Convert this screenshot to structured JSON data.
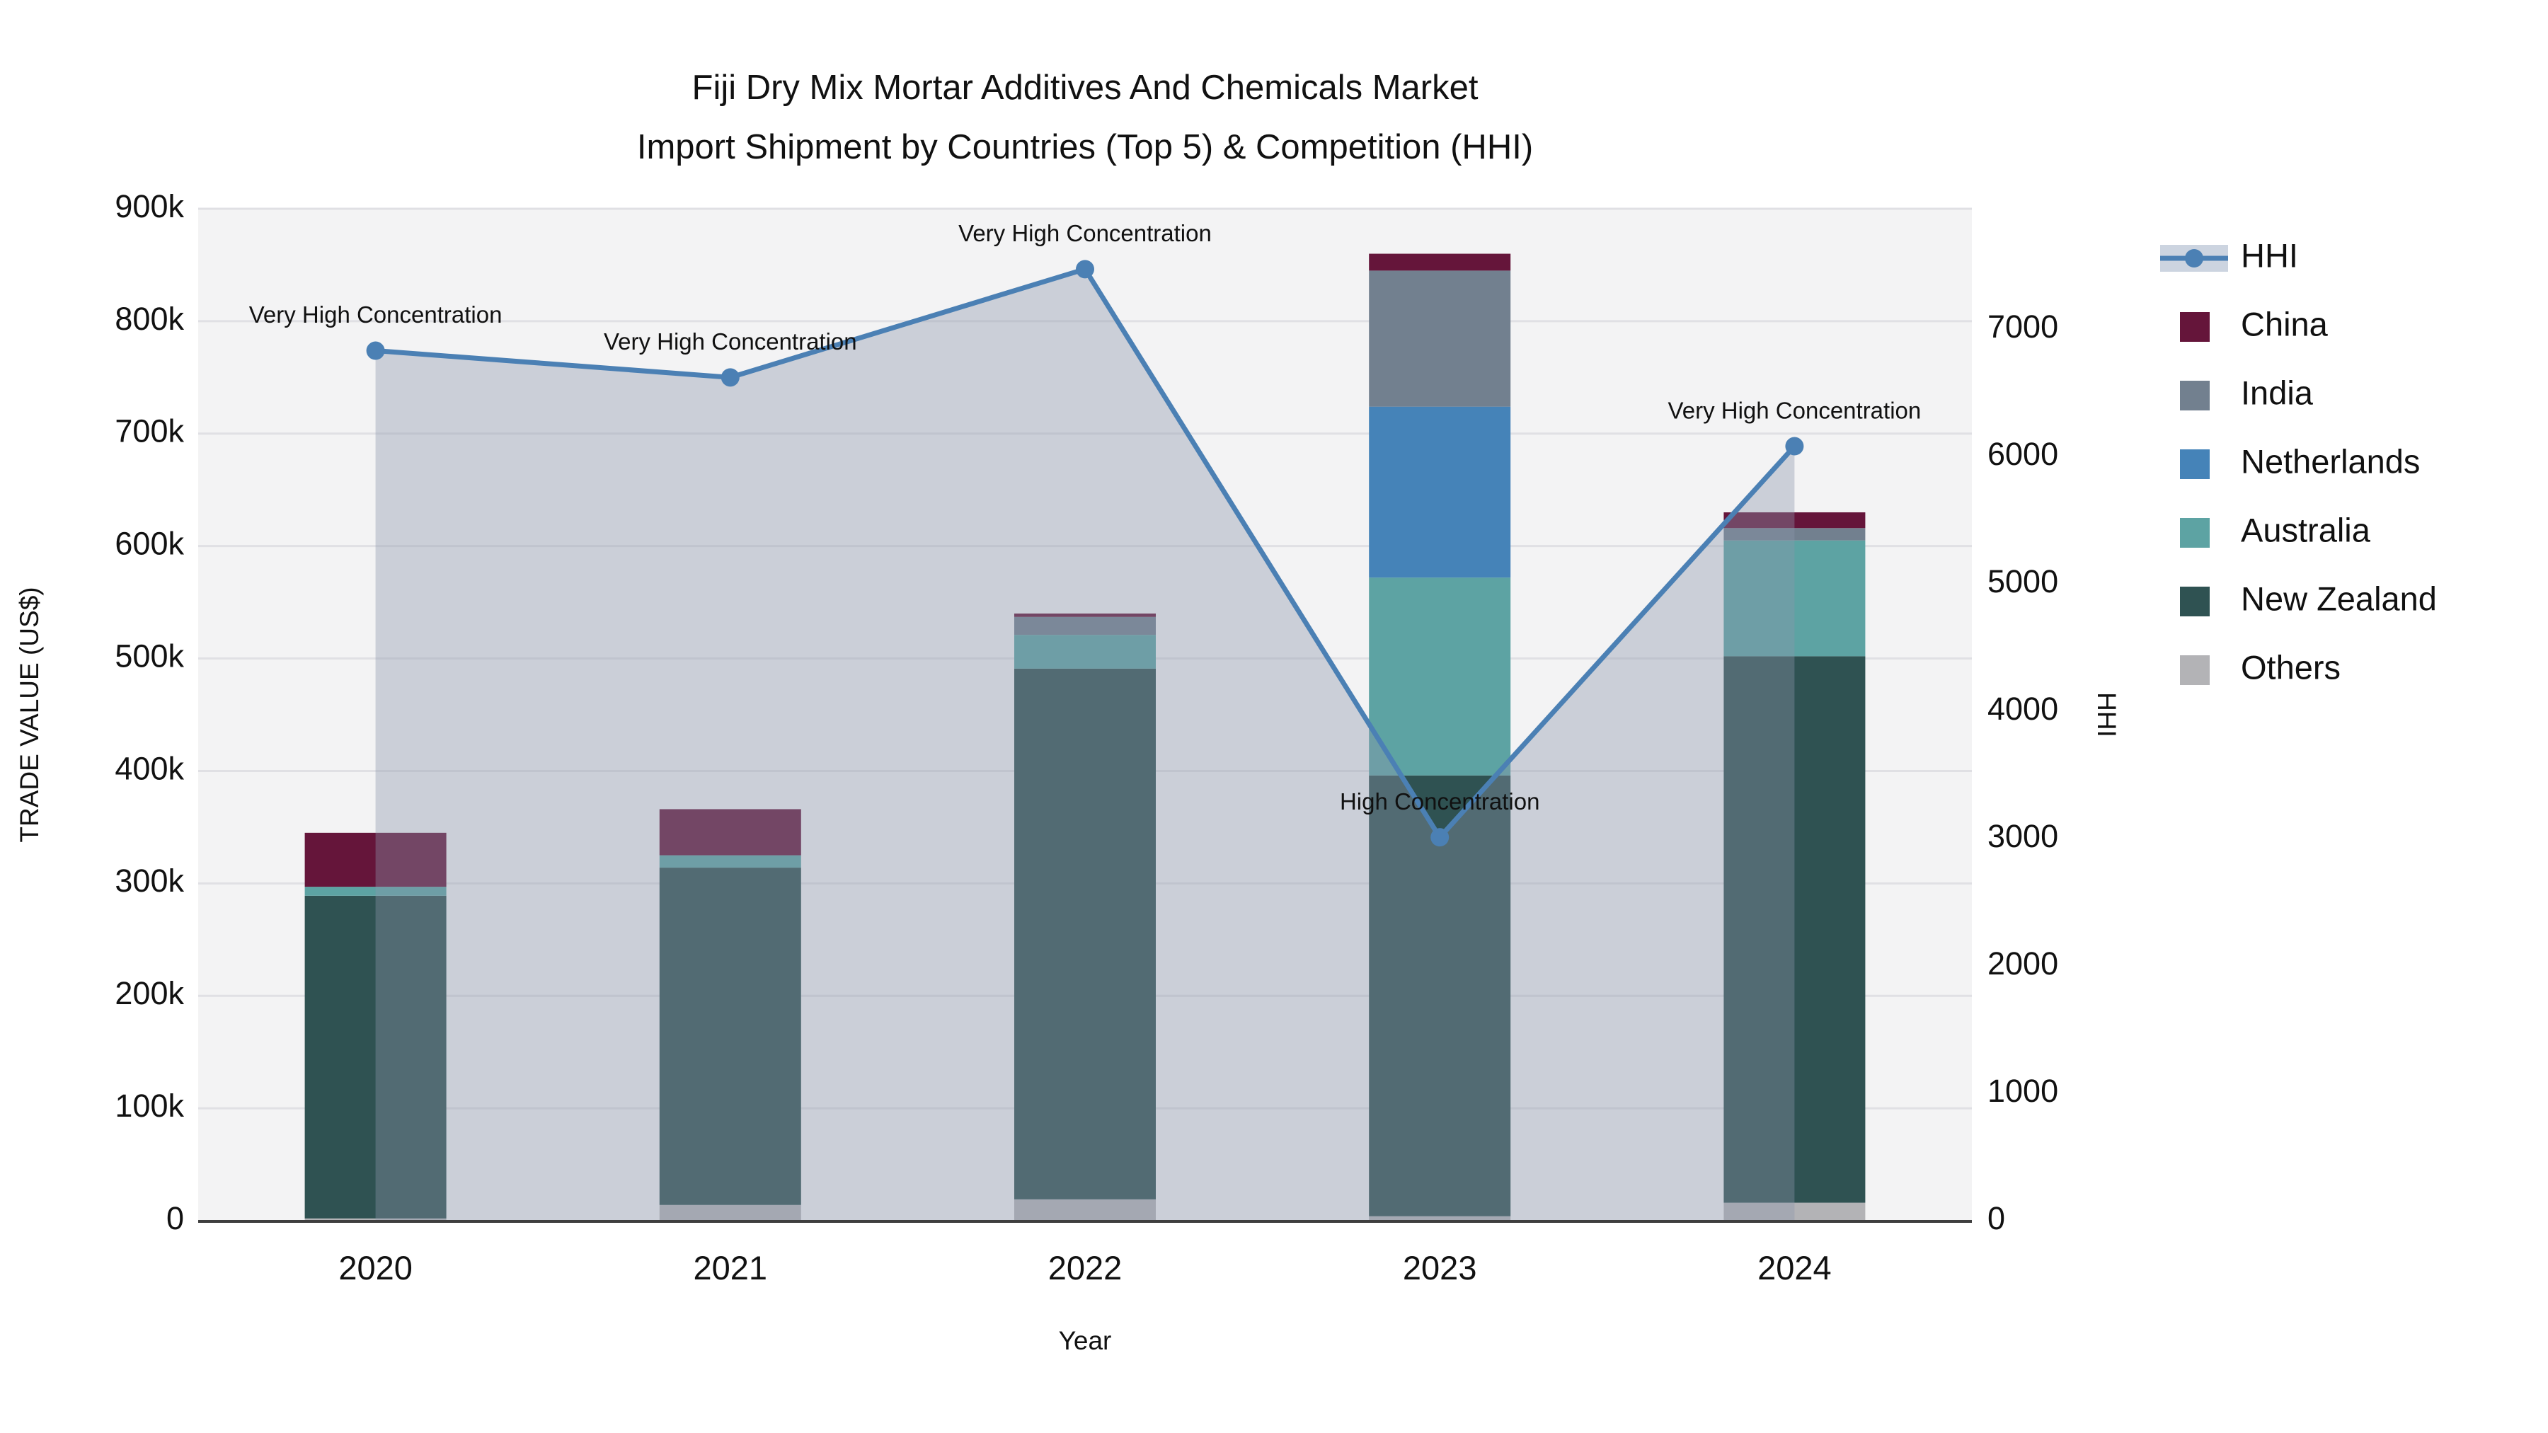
{
  "title": {
    "line1": "Fiji Dry Mix Mortar Additives And Chemicals Market",
    "line2": "Import Shipment by Countries (Top 5) & Competition (HHI)"
  },
  "axes": {
    "y_left": {
      "title": "TRADE VALUE (US$)",
      "range": [
        0,
        900000
      ],
      "ticks": [
        {
          "value": 0,
          "label": "0"
        },
        {
          "value": 100000,
          "label": "100k"
        },
        {
          "value": 200000,
          "label": "200k"
        },
        {
          "value": 300000,
          "label": "300k"
        },
        {
          "value": 400000,
          "label": "400k"
        },
        {
          "value": 500000,
          "label": "500k"
        },
        {
          "value": 600000,
          "label": "600k"
        },
        {
          "value": 700000,
          "label": "700k"
        },
        {
          "value": 800000,
          "label": "800k"
        },
        {
          "value": 900000,
          "label": "900k"
        }
      ]
    },
    "y_right": {
      "title": "HHI",
      "range": [
        0,
        7944
      ],
      "ticks": [
        {
          "value": 0,
          "label": "0"
        },
        {
          "value": 1000,
          "label": "1000"
        },
        {
          "value": 2000,
          "label": "2000"
        },
        {
          "value": 3000,
          "label": "3000"
        },
        {
          "value": 4000,
          "label": "4000"
        },
        {
          "value": 5000,
          "label": "5000"
        },
        {
          "value": 6000,
          "label": "6000"
        },
        {
          "value": 7000,
          "label": "7000"
        }
      ]
    },
    "x": {
      "title": "Year"
    }
  },
  "colors": {
    "plot_bg": "#f3f3f4",
    "grid": "#e0e0e4",
    "axis_line": "#3f3f3f",
    "hhi_line": "#4b80b4",
    "hhi_fill": "rgba(140,150,170,0.38)",
    "hhi_legend_band": "#ccd4e0",
    "text": "#111111"
  },
  "chart_data": {
    "type": "bar+line",
    "categories": [
      "2020",
      "2021",
      "2022",
      "2023",
      "2024"
    ],
    "stacked_bar_series": [
      {
        "name": "Others",
        "color": "#b3b3b6",
        "values": [
          2000,
          14000,
          19000,
          4000,
          16000
        ]
      },
      {
        "name": "New Zealand",
        "color": "#2f5252",
        "values": [
          287000,
          300000,
          472000,
          392000,
          486000
        ]
      },
      {
        "name": "Australia",
        "color": "#5da3a3",
        "values": [
          8000,
          11000,
          30000,
          176000,
          103000
        ]
      },
      {
        "name": "Netherlands",
        "color": "#4583b8",
        "values": [
          0,
          0,
          0,
          152000,
          0
        ]
      },
      {
        "name": "India",
        "color": "#72808f",
        "values": [
          0,
          0,
          16000,
          121000,
          11000
        ]
      },
      {
        "name": "China",
        "color": "#65153a",
        "values": [
          48000,
          41000,
          3000,
          15000,
          14000
        ]
      }
    ],
    "line_series": {
      "name": "HHI",
      "values": [
        6830,
        6620,
        7470,
        3010,
        6080
      ]
    },
    "bar_totals": [
      345000,
      366000,
      540000,
      860000,
      630000
    ],
    "annotations": [
      {
        "year": "2020",
        "text": "Very High Concentration"
      },
      {
        "year": "2021",
        "text": "Very High Concentration"
      },
      {
        "year": "2022",
        "text": "Very High Concentration"
      },
      {
        "year": "2023",
        "text": "High Concentration"
      },
      {
        "year": "2024",
        "text": "Very High Concentration"
      }
    ],
    "legend": [
      "HHI",
      "China",
      "India",
      "Netherlands",
      "Australia",
      "New Zealand",
      "Others"
    ],
    "layout_hints": {
      "legend_position": "right",
      "grid": "horizontal-left-axis",
      "area_fill_under_line": true
    }
  }
}
